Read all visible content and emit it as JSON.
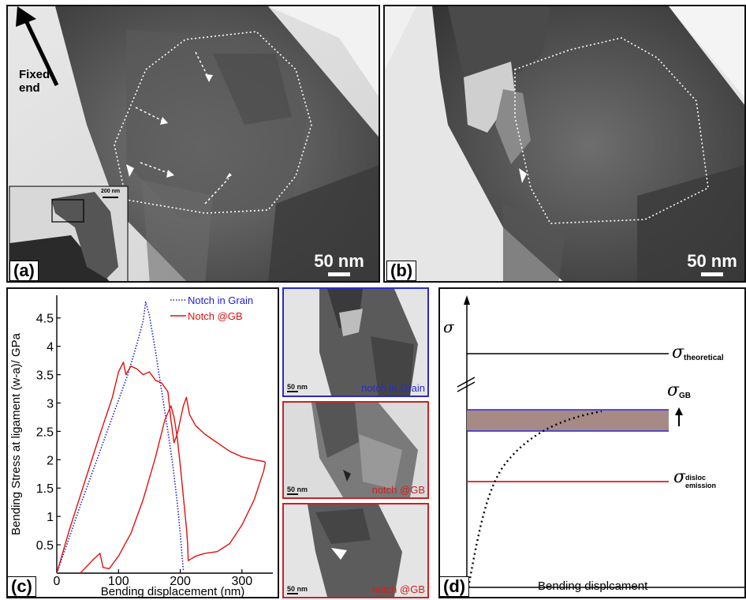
{
  "panel_a": {
    "label": "(a)",
    "fixed_end_label_line1": "Fixed",
    "fixed_end_label_line2": "end",
    "scale": "50 nm",
    "inset_scale": "200 nm"
  },
  "panel_b": {
    "label": "(b)",
    "scale": "50 nm"
  },
  "panel_c": {
    "label": "(c)",
    "chart_data": {
      "type": "line",
      "xlabel": "Bending displacement (nm)",
      "ylabel": "Bending Stress at ligament (w-a)/ GPa",
      "xlim": [
        0,
        350
      ],
      "ylim": [
        0,
        4.9
      ],
      "xticks": [
        "0",
        "100",
        "200",
        "300"
      ],
      "yticks": [
        "0.5",
        "1",
        "1.5",
        "2",
        "2.5",
        "3",
        "3.5",
        "4",
        "4.5"
      ],
      "legend_position": "top-right",
      "series": [
        {
          "name": "Notch in Grain",
          "color": "#2020d0",
          "style": "dotted",
          "points": [
            [
              0,
              0
            ],
            [
              20,
              0.62
            ],
            [
              40,
              1.25
            ],
            [
              60,
              1.85
            ],
            [
              80,
              2.45
            ],
            [
              100,
              3.05
            ],
            [
              115,
              3.5
            ],
            [
              130,
              4.05
            ],
            [
              140,
              4.45
            ],
            [
              144,
              4.78
            ],
            [
              150,
              4.55
            ],
            [
              160,
              3.9
            ],
            [
              170,
              3.2
            ],
            [
              180,
              2.5
            ],
            [
              188,
              1.9
            ],
            [
              195,
              1.25
            ],
            [
              200,
              0.7
            ],
            [
              203,
              0.3
            ],
            [
              205,
              0.05
            ]
          ]
        },
        {
          "name": "Notch @GB",
          "color": "#e01010",
          "style": "solid",
          "points": [
            [
              0,
              0
            ],
            [
              20,
              0.75
            ],
            [
              45,
              1.6
            ],
            [
              70,
              2.45
            ],
            [
              90,
              3.1
            ],
            [
              100,
              3.55
            ],
            [
              108,
              3.72
            ],
            [
              112,
              3.5
            ],
            [
              120,
              3.65
            ],
            [
              130,
              3.6
            ],
            [
              140,
              3.5
            ],
            [
              150,
              3.55
            ],
            [
              160,
              3.4
            ],
            [
              170,
              3.35
            ],
            [
              180,
              3.2
            ],
            [
              185,
              2.7
            ],
            [
              190,
              2.3
            ],
            [
              195,
              2.45
            ],
            [
              205,
              2.95
            ],
            [
              210,
              3.1
            ],
            [
              215,
              2.8
            ],
            [
              225,
              2.6
            ],
            [
              240,
              2.45
            ],
            [
              260,
              2.3
            ],
            [
              280,
              2.15
            ],
            [
              300,
              2.05
            ],
            [
              320,
              2.0
            ],
            [
              335,
              1.97
            ],
            [
              338,
              1.95
            ],
            [
              335,
              1.8
            ],
            [
              320,
              1.3
            ],
            [
              300,
              0.85
            ],
            [
              280,
              0.52
            ],
            [
              260,
              0.38
            ],
            [
              240,
              0.35
            ],
            [
              225,
              0.3
            ],
            [
              213,
              0.22
            ],
            [
              212,
              0.5
            ],
            [
              210,
              0.8
            ],
            [
              205,
              1.35
            ],
            [
              200,
              1.9
            ],
            [
              195,
              2.4
            ],
            [
              190,
              2.75
            ],
            [
              185,
              2.95
            ],
            [
              175,
              2.7
            ],
            [
              160,
              2.05
            ],
            [
              140,
              1.3
            ],
            [
              120,
              0.7
            ],
            [
              100,
              0.3
            ],
            [
              85,
              0.08
            ],
            [
              75,
              0.1
            ],
            [
              70,
              0.35
            ],
            [
              60,
              0.25
            ],
            [
              45,
              0.08
            ],
            [
              38,
              0.0
            ]
          ]
        }
      ]
    },
    "insets": [
      {
        "caption": "notch in Grain",
        "scale": "50 nm",
        "border_color": "#2a2ac8",
        "caption_color": "#2a2ac8"
      },
      {
        "caption": "notch @GB",
        "scale": "50 nm",
        "border_color": "#d02020",
        "caption_color": "#d02020"
      },
      {
        "caption": "notch @GB",
        "scale": "50 nm",
        "border_color": "#d02020",
        "caption_color": "#d02020"
      }
    ]
  },
  "panel_d": {
    "label": "(d)",
    "y_symbol": "σ",
    "x_label": "Bending displcament",
    "theoretical_label": "σ",
    "theoretical_sub": "theoretical",
    "gb_label": "σ",
    "gb_sub": "GB",
    "disloc_label": "σ",
    "disloc_sub_line1": "disloc",
    "disloc_sub_line2": "emission",
    "band_color": "#a58a86",
    "band_edge_color": "#2a2ae0",
    "disloc_line_color": "#e01818"
  }
}
